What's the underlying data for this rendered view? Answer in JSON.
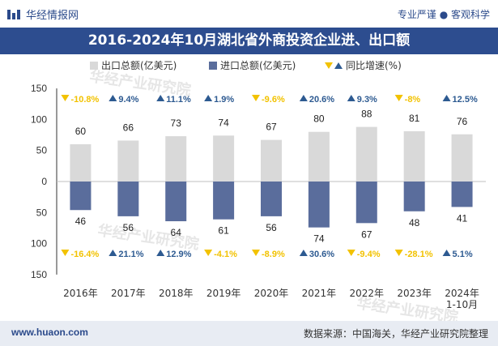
{
  "header": {
    "brand": "华经情报网",
    "tagline": "专业严谨 ● 客观科学"
  },
  "title": "2016-2024年10月湖北省外商投资企业进、出口额",
  "footer": {
    "website": "www.huaon.com",
    "source": "数据来源：中国海关，华经产业研究院整理"
  },
  "colors": {
    "export": "#d9d9d9",
    "import": "#5a6d9c",
    "up": "#2d5a91",
    "down": "#f2c200",
    "title_bg": "#2d4d8f"
  },
  "chart_data": {
    "type": "bar",
    "title": "2016-2024年10月湖北省外商投资企业进、出口额",
    "categories": [
      "2016年",
      "2017年",
      "2018年",
      "2019年",
      "2020年",
      "2021年",
      "2022年",
      "2023年",
      "2024年\n1-10月"
    ],
    "legend": [
      "出口总额(亿美元)",
      "进口总额(亿美元)",
      "同比增速(%)"
    ],
    "legend_position": "top",
    "series": [
      {
        "name": "出口总额(亿美元)",
        "values": [
          60,
          66,
          73,
          74,
          67,
          80,
          88,
          81,
          76
        ]
      },
      {
        "name": "进口总额(亿美元)",
        "values": [
          46,
          56,
          64,
          61,
          56,
          74,
          67,
          48,
          41
        ]
      }
    ],
    "export_growth": [
      "-10.8%",
      "9.4%",
      "11.1%",
      "1.9%",
      "-9.6%",
      "20.6%",
      "9.3%",
      "-8%",
      "12.5%"
    ],
    "import_growth": [
      "-16.4%",
      "21.1%",
      "12.9%",
      "-4.1%",
      "-8.9%",
      "30.6%",
      "-9.4%",
      "-28.1%",
      "5.1%"
    ],
    "yticks": [
      "150",
      "100",
      "50",
      "0",
      "50",
      "100",
      "150"
    ],
    "ylim": [
      -150,
      150
    ],
    "watermark": "华经产业研究院"
  }
}
